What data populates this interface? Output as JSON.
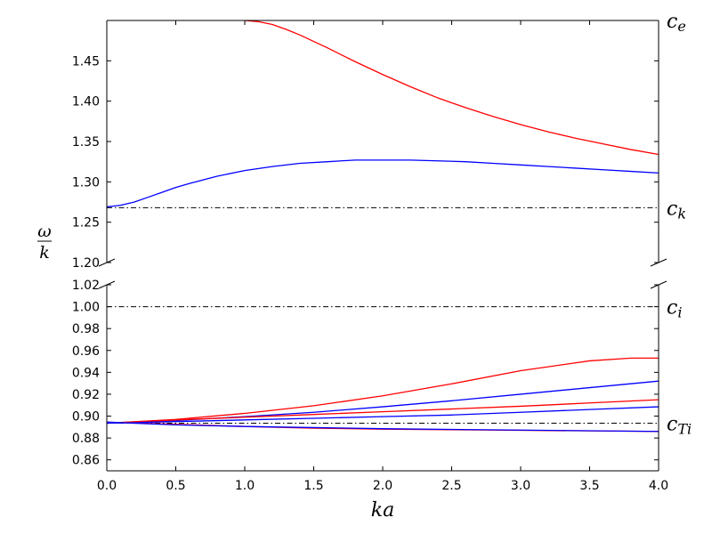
{
  "chart_data": {
    "type": "line",
    "xlabel": "ka",
    "ylabel_numerator": "ω",
    "ylabel_denominator": "k",
    "xlim": [
      0.0,
      4.0
    ],
    "x_ticks": [
      "0.0",
      "0.5",
      "1.0",
      "1.5",
      "2.0",
      "2.5",
      "3.0",
      "3.5",
      "4.0"
    ],
    "panels": [
      {
        "id": "upper",
        "ylim": [
          1.2,
          1.5
        ],
        "y_ticks": [
          "1.20",
          "1.25",
          "1.30",
          "1.35",
          "1.40",
          "1.45"
        ],
        "reference_lines": [
          {
            "label_main": "c",
            "label_sub": "e",
            "y": 1.5
          },
          {
            "label_main": "c",
            "label_sub": "k",
            "y": 1.268
          }
        ],
        "series": [
          {
            "color": "#ff0000",
            "x": [
              1.0,
              1.1,
              1.2,
              1.3,
              1.4,
              1.6,
              1.8,
              2.0,
              2.2,
              2.4,
              2.6,
              2.8,
              3.0,
              3.2,
              3.4,
              3.6,
              3.8,
              4.0
            ],
            "y": [
              1.5,
              1.4985,
              1.495,
              1.489,
              1.482,
              1.466,
              1.449,
              1.433,
              1.418,
              1.404,
              1.392,
              1.381,
              1.371,
              1.362,
              1.354,
              1.347,
              1.34,
              1.334
            ]
          },
          {
            "color": "#0000ff",
            "x": [
              0.0,
              0.1,
              0.2,
              0.3,
              0.4,
              0.5,
              0.6,
              0.8,
              1.0,
              1.2,
              1.4,
              1.6,
              1.8,
              2.0,
              2.2,
              2.4,
              2.6,
              2.8,
              3.0,
              3.2,
              3.4,
              3.6,
              3.8,
              4.0
            ],
            "y": [
              1.269,
              1.271,
              1.275,
              1.281,
              1.287,
              1.293,
              1.298,
              1.307,
              1.314,
              1.319,
              1.323,
              1.325,
              1.327,
              1.327,
              1.327,
              1.326,
              1.325,
              1.323,
              1.321,
              1.319,
              1.317,
              1.315,
              1.313,
              1.311
            ]
          }
        ]
      },
      {
        "id": "lower",
        "ylim": [
          0.85,
          1.02
        ],
        "y_ticks": [
          "0.86",
          "0.88",
          "0.90",
          "0.92",
          "0.94",
          "0.96",
          "0.98",
          "1.00",
          "1.02"
        ],
        "reference_lines": [
          {
            "label_main": "c",
            "label_sub": "i",
            "y": 1.0
          },
          {
            "label_main": "c",
            "label_sub": "Ti",
            "y": 0.8935
          }
        ],
        "series": [
          {
            "color": "#ff0000",
            "x": [
              0.0,
              0.5,
              1.0,
              1.5,
              2.0,
              2.5,
              3.0,
              3.5,
              3.8,
              4.0
            ],
            "y": [
              0.8935,
              0.897,
              0.9025,
              0.9095,
              0.9185,
              0.9295,
              0.9415,
              0.9505,
              0.953,
              0.953
            ]
          },
          {
            "color": "#0000ff",
            "x": [
              0.0,
              0.5,
              1.0,
              1.5,
              2.0,
              2.5,
              3.0,
              3.5,
              4.0
            ],
            "y": [
              0.8935,
              0.896,
              0.8995,
              0.9035,
              0.9085,
              0.914,
              0.92,
              0.926,
              0.932
            ]
          },
          {
            "color": "#ff0000",
            "x": [
              0.0,
              0.5,
              1.0,
              1.5,
              2.0,
              2.5,
              3.0,
              3.5,
              4.0
            ],
            "y": [
              0.8935,
              0.8965,
              0.899,
              0.9015,
              0.904,
              0.9065,
              0.909,
              0.912,
              0.915
            ]
          },
          {
            "color": "#0000ff",
            "x": [
              0.0,
              0.5,
              1.0,
              1.5,
              2.0,
              2.5,
              3.0,
              3.5,
              4.0
            ],
            "y": [
              0.8935,
              0.895,
              0.8965,
              0.898,
              0.8995,
              0.901,
              0.9035,
              0.906,
              0.9085
            ]
          },
          {
            "color": "#ff0000",
            "x": [
              0.0,
              0.5,
              1.0,
              1.5,
              2.0,
              2.5,
              3.0,
              3.5,
              4.0
            ],
            "y": [
              0.8945,
              0.8925,
              0.8905,
              0.889,
              0.888,
              0.8875,
              0.887,
              0.8865,
              0.886
            ]
          },
          {
            "color": "#0000ff",
            "x": [
              0.0,
              0.5,
              1.0,
              1.5,
              2.0,
              2.5,
              3.0,
              3.5,
              4.0
            ],
            "y": [
              0.8945,
              0.892,
              0.8905,
              0.8895,
              0.8885,
              0.8878,
              0.8872,
              0.8866,
              0.886
            ]
          }
        ]
      }
    ]
  }
}
